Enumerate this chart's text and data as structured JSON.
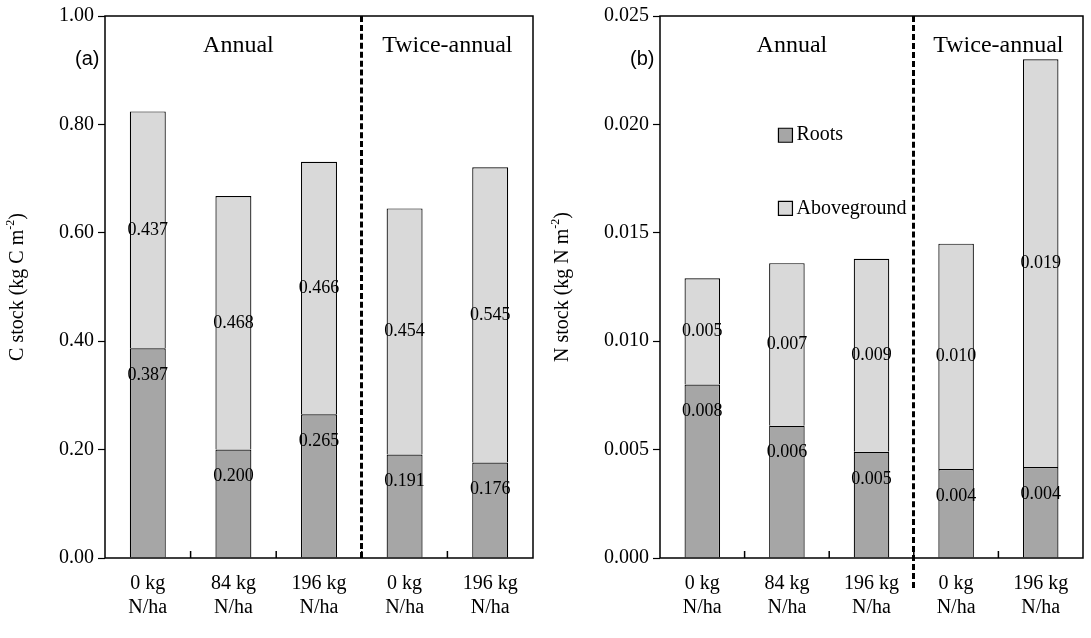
{
  "chart_data": [
    {
      "type": "bar",
      "stacked": true,
      "ylabel": "C stock (kg C m$^{-2}$)",
      "annotations": [
        "(a)",
        "Annual",
        "Twice-annual"
      ],
      "categories": [
        "0 kg N/ha",
        "84 kg N/ha",
        "196 kg N/ha",
        "0 kg N/ha",
        "196 kg N/ha"
      ],
      "series": [
        {
          "color": "#a6a6a6",
          "values": [
            0.387,
            0.2,
            0.265,
            0.191,
            0.176
          ],
          "value_labels": [
            "0.387",
            "0.200",
            "0.265",
            "0.191",
            "0.176"
          ]
        },
        {
          "color": "#d9d9d9",
          "values": [
            0.437,
            0.468,
            0.466,
            0.454,
            0.545
          ],
          "value_labels": [
            "0.437",
            "0.468",
            "0.466",
            "0.454",
            "0.545"
          ]
        }
      ],
      "ylim": [
        0,
        1
      ],
      "yticks": [
        {
          "value": 0,
          "label": "0.00"
        },
        {
          "value": 0.2,
          "label": "0.20"
        },
        {
          "value": 0.4,
          "label": "0.40"
        },
        {
          "value": 0.6,
          "label": "0.60"
        },
        {
          "value": 0.8,
          "label": "0.80"
        },
        {
          "value": 1,
          "label": "1.00"
        }
      ],
      "grid": false,
      "legend": false
    },
    {
      "type": "bar",
      "stacked": true,
      "ylabel": "N stock (kg N m$^{-2}$)",
      "annotations": [
        "(b)",
        "Annual",
        "Twice-annual"
      ],
      "categories": [
        "0 kg N/ha",
        "84 kg N/ha",
        "196 kg N/ha",
        "0 kg N/ha",
        "196 kg N/ha"
      ],
      "series": [
        {
          "name": "Roots",
          "color": "#a6a6a6",
          "values": [
            0.008,
            0.0061,
            0.0049,
            0.0041,
            0.0042
          ],
          "value_labels": [
            "0.008",
            "0.006",
            "0.005",
            "0.004",
            "0.004"
          ]
        },
        {
          "name": "Aboveground",
          "color": "#d9d9d9",
          "values": [
            0.0049,
            0.0075,
            0.0089,
            0.0104,
            0.0188
          ],
          "value_labels": [
            "0.005",
            "0.007",
            "0.009",
            "0.010",
            "0.019"
          ]
        }
      ],
      "ylim": [
        0,
        0.025
      ],
      "yticks": [
        {
          "value": 0,
          "label": "0.000"
        },
        {
          "value": 0.005,
          "label": "0.005"
        },
        {
          "value": 0.01,
          "label": "0.010"
        },
        {
          "value": 0.015,
          "label": "0.015"
        },
        {
          "value": 0.02,
          "label": "0.020"
        },
        {
          "value": 0.025,
          "label": "0.025"
        }
      ],
      "grid": false,
      "legend": "top left"
    }
  ]
}
